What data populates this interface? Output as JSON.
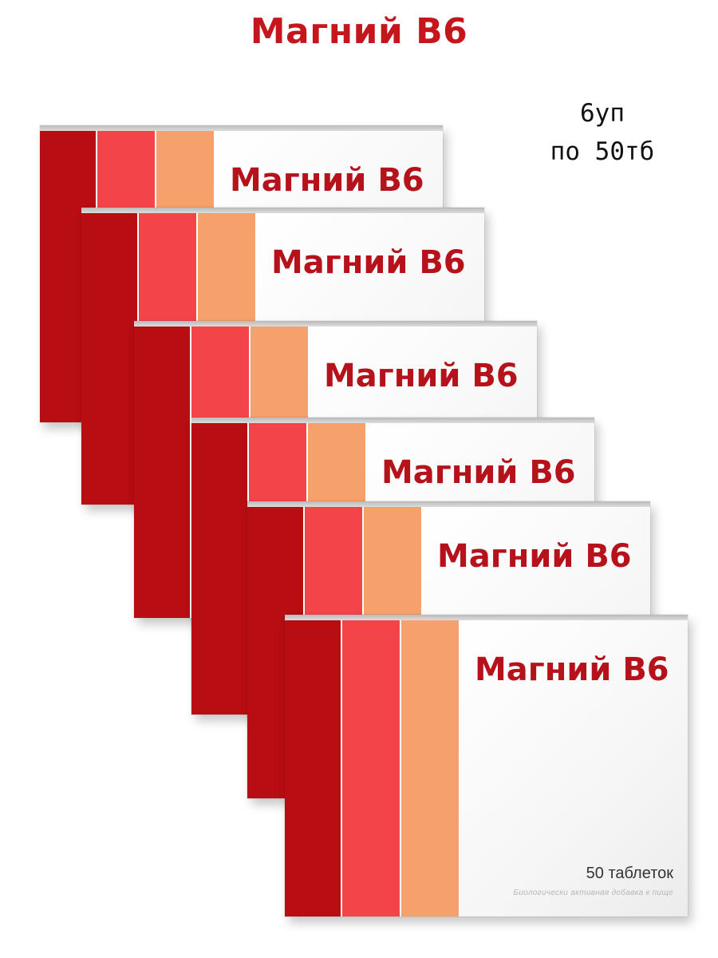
{
  "headline": "Магний В6",
  "pack_count": {
    "line1": "6уп",
    "line2": "по 50тб"
  },
  "box": {
    "name": "Магний В6",
    "tablets": "50 таблеток",
    "supplement_note": "Биологически активная добавка к пище"
  },
  "colors": {
    "headline": "#c4161c",
    "stripe_dark_red": "#b80d12",
    "stripe_red": "#f3444a",
    "stripe_orange": "#f6a06b",
    "box_text": "#b5121b"
  },
  "boxes_shown": 6
}
